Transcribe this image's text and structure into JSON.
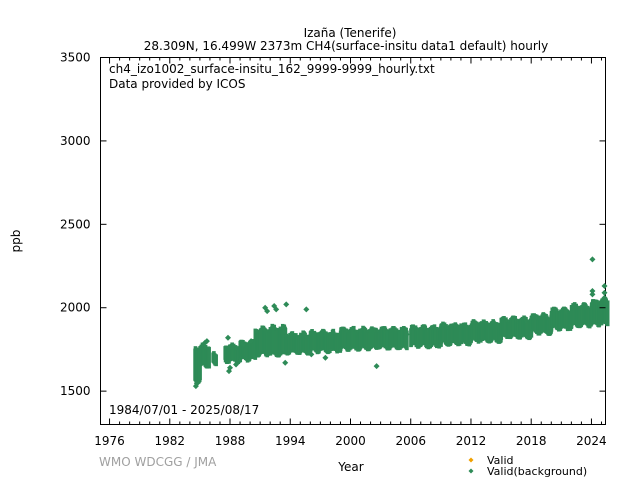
{
  "chart_data": {
    "type": "scatter",
    "title": "Izaña (Tenerife)",
    "subtitle": "28.309N, 16.499W 2373m    CH4(surface-insitu data1 default) hourly",
    "annotations": [
      "ch4_izo1002_surface-insitu_162_9999-9999_hourly.txt",
      "Data provided by ICOS"
    ],
    "date_range": "1984/07/01 - 2025/08/17",
    "xlabel": "Year",
    "ylabel": "ppb",
    "xlim": [
      1975.1,
      2025.4
    ],
    "ylim": [
      1300,
      3500
    ],
    "xticks": [
      1976,
      1982,
      1988,
      1994,
      2000,
      2006,
      2012,
      2018,
      2024
    ],
    "yticks": [
      1500,
      2000,
      2500,
      3000,
      3500
    ],
    "grid": false,
    "legend_position": "bottom-right",
    "series": [
      {
        "name": "Valid",
        "color": "#f0a000",
        "envelope": []
      },
      {
        "name": "Valid(background)",
        "color": "#2e8b57",
        "envelope": [
          {
            "x0": 1984.5,
            "x1": 1985.0,
            "low": 1560,
            "high": 1760
          },
          {
            "x0": 1985.0,
            "x1": 1985.9,
            "low": 1650,
            "high": 1770
          },
          {
            "x0": 1986.3,
            "x1": 1986.6,
            "low": 1660,
            "high": 1720
          },
          {
            "x0": 1987.5,
            "x1": 1989.0,
            "low": 1680,
            "high": 1770
          },
          {
            "x0": 1989.0,
            "x1": 1990.5,
            "low": 1690,
            "high": 1790
          },
          {
            "x0": 1990.5,
            "x1": 1992.0,
            "low": 1720,
            "high": 1870
          },
          {
            "x0": 1992.0,
            "x1": 1993.5,
            "low": 1720,
            "high": 1880
          },
          {
            "x0": 1993.5,
            "x1": 1996.0,
            "low": 1730,
            "high": 1840
          },
          {
            "x0": 1996.0,
            "x1": 1999.0,
            "low": 1740,
            "high": 1850
          },
          {
            "x0": 1999.0,
            "x1": 2002.0,
            "low": 1755,
            "high": 1870
          },
          {
            "x0": 2002.0,
            "x1": 2005.6,
            "low": 1760,
            "high": 1870
          },
          {
            "x0": 2006.0,
            "x1": 2009.0,
            "low": 1770,
            "high": 1880
          },
          {
            "x0": 2009.0,
            "x1": 2012.0,
            "low": 1785,
            "high": 1895
          },
          {
            "x0": 2012.0,
            "x1": 2015.0,
            "low": 1800,
            "high": 1910
          },
          {
            "x0": 2015.0,
            "x1": 2018.0,
            "low": 1825,
            "high": 1930
          },
          {
            "x0": 2018.0,
            "x1": 2020.0,
            "low": 1850,
            "high": 1950
          },
          {
            "x0": 2020.0,
            "x1": 2022.0,
            "low": 1875,
            "high": 1985
          },
          {
            "x0": 2022.0,
            "x1": 2024.0,
            "low": 1895,
            "high": 2010
          },
          {
            "x0": 2024.0,
            "x1": 2025.6,
            "low": 1900,
            "high": 2040
          }
        ],
        "outliers": [
          [
            1984.6,
            1530
          ],
          [
            1984.7,
            1545
          ],
          [
            1985.5,
            1790
          ],
          [
            1985.7,
            1800
          ],
          [
            1987.8,
            1820
          ],
          [
            1987.9,
            1620
          ],
          [
            1988.0,
            1640
          ],
          [
            1988.6,
            1660
          ],
          [
            1989.3,
            1780
          ],
          [
            1990.1,
            1800
          ],
          [
            1991.5,
            2000
          ],
          [
            1991.7,
            1980
          ],
          [
            1992.4,
            2010
          ],
          [
            1992.6,
            1990
          ],
          [
            1993.6,
            2020
          ],
          [
            1993.5,
            1670
          ],
          [
            1995.6,
            1990
          ],
          [
            1996.1,
            1720
          ],
          [
            1997.5,
            1700
          ],
          [
            2002.6,
            1650
          ],
          [
            2005.6,
            1840
          ],
          [
            2024.1,
            2290
          ],
          [
            2024.1,
            2100
          ],
          [
            2024.1,
            2080
          ],
          [
            2025.3,
            2130
          ],
          [
            2025.3,
            2090
          ],
          [
            2025.3,
            2060
          ]
        ]
      }
    ]
  },
  "footer": {
    "credit": "WMO WDCGG / JMA"
  }
}
